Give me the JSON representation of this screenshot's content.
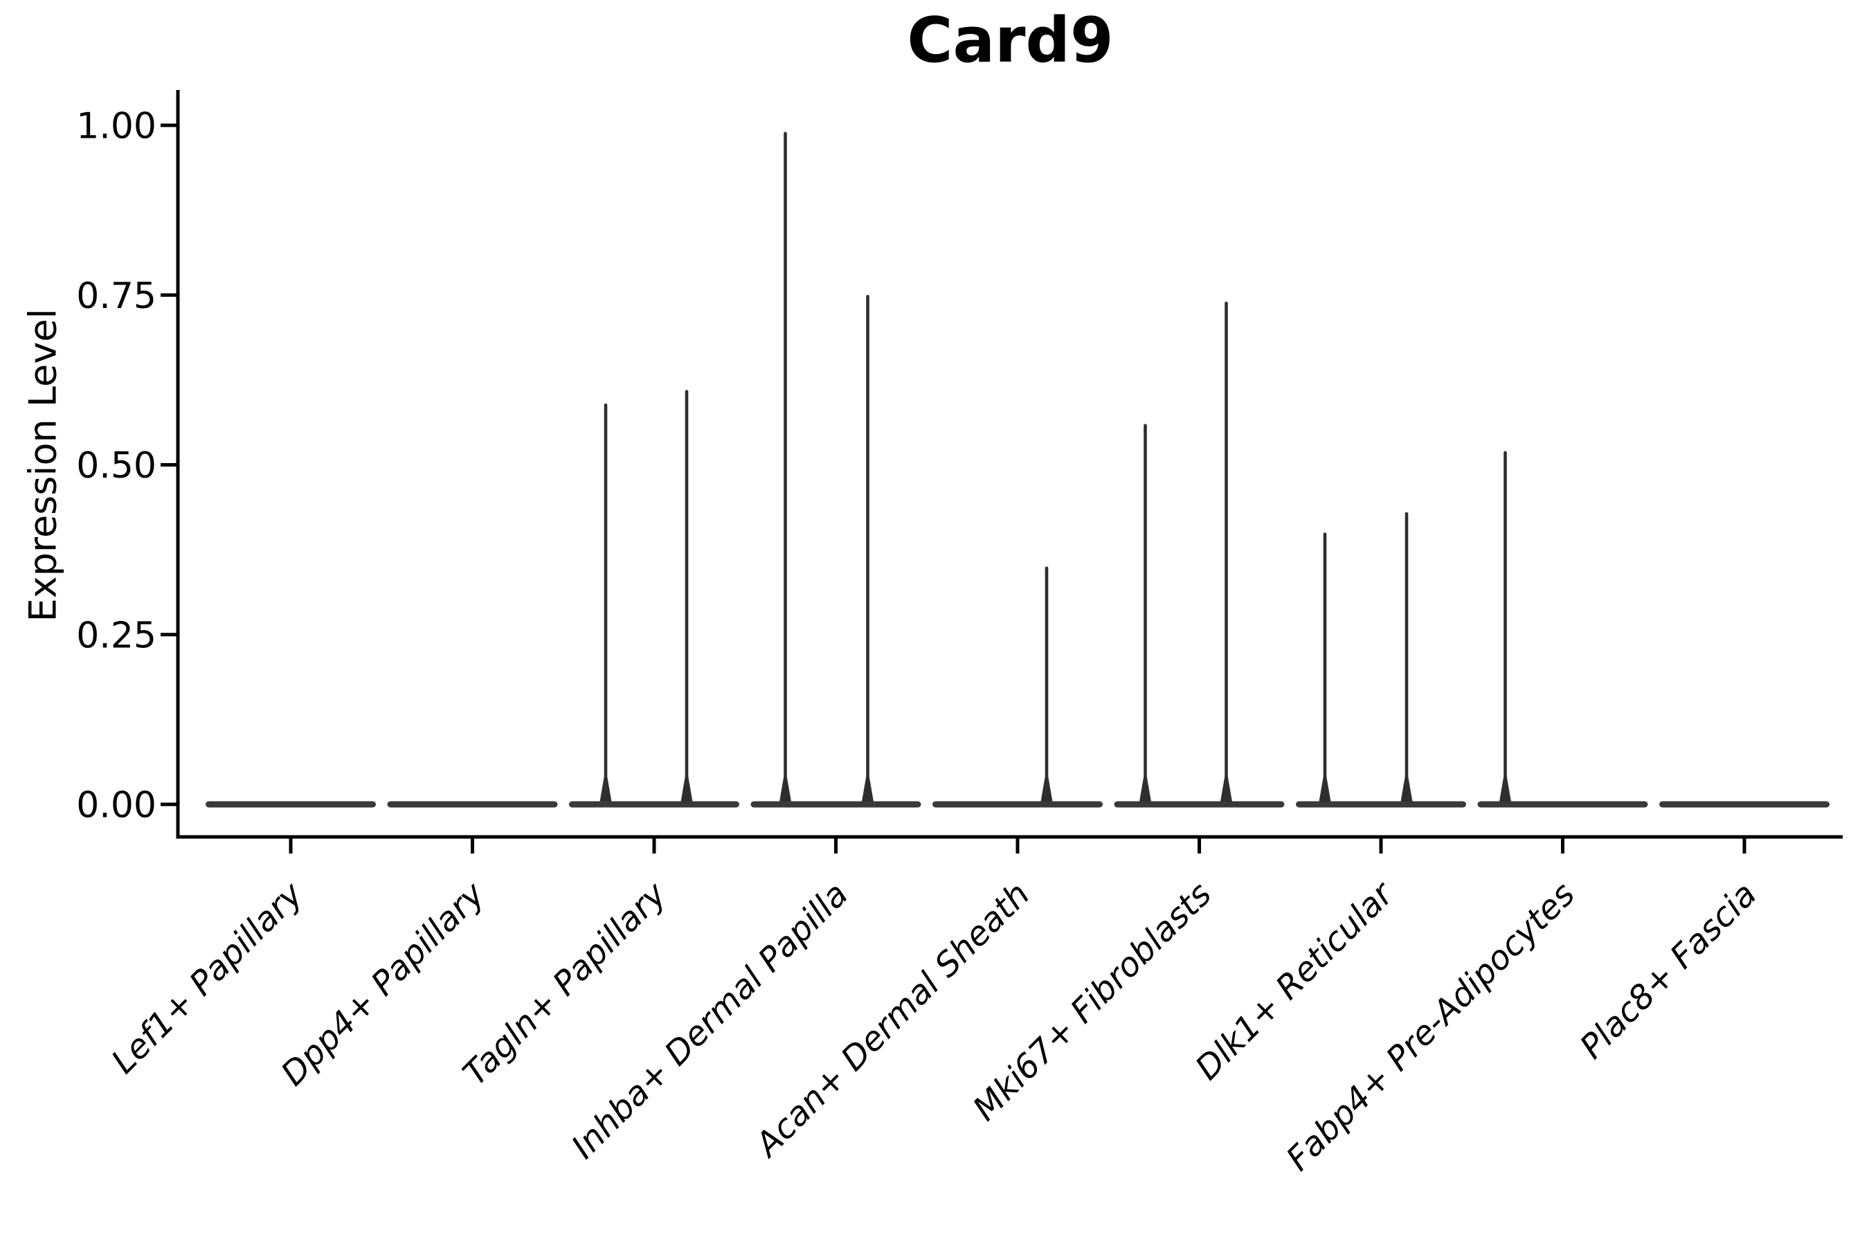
{
  "chart_data": {
    "type": "violin",
    "title": "Card9",
    "ylabel": "Expression Level",
    "xlabel": "",
    "ylim": [
      0,
      1.05
    ],
    "yticks": [
      1.0,
      0.75,
      0.5,
      0.25,
      0.0
    ],
    "grid": false,
    "legend_position": "none",
    "xtick_rotation_deg": 45,
    "categories": [
      "Lef1+ Papillary",
      "Dpp4+ Papillary",
      "Tagln+ Papillary",
      "Inhba+ Dermal Papilla",
      "Acan+ Dermal Sheath",
      "Mki67+ Fibroblasts",
      "Dlk1+ Reticular",
      "Fabp4+ Pre-Adipocytes",
      "Plac8+ Fascia"
    ],
    "violins": [
      {
        "category": "Lef1+ Papillary",
        "baseline_value": 0.0,
        "spikes": []
      },
      {
        "category": "Dpp4+ Papillary",
        "baseline_value": 0.0,
        "spikes": []
      },
      {
        "category": "Tagln+ Papillary",
        "baseline_value": 0.0,
        "spikes": [
          {
            "offset": -70,
            "value": 0.59
          },
          {
            "offset": 47,
            "value": 0.61
          }
        ]
      },
      {
        "category": "Inhba+ Dermal Papilla",
        "baseline_value": 0.0,
        "spikes": [
          {
            "offset": -73,
            "value": 0.99
          },
          {
            "offset": 46,
            "value": 0.75
          }
        ]
      },
      {
        "category": "Acan+ Dermal Sheath",
        "baseline_value": 0.0,
        "spikes": [
          {
            "offset": 42,
            "value": 0.35
          }
        ]
      },
      {
        "category": "Mki67+ Fibroblasts",
        "baseline_value": 0.0,
        "spikes": [
          {
            "offset": -78,
            "value": 0.56
          },
          {
            "offset": 39,
            "value": 0.74
          }
        ]
      },
      {
        "category": "Dlk1+ Reticular",
        "baseline_value": 0.0,
        "spikes": [
          {
            "offset": -81,
            "value": 0.4
          },
          {
            "offset": 37,
            "value": 0.43
          }
        ]
      },
      {
        "category": "Fabp4+ Pre-Adipocytes",
        "baseline_value": 0.0,
        "spikes": [
          {
            "offset": -83,
            "value": 0.52
          }
        ]
      },
      {
        "category": "Plac8+ Fascia",
        "baseline_value": 0.0,
        "spikes": []
      }
    ],
    "colors": {
      "violin_body": "#3a3a3a",
      "violin_spike": "#2e2e2e",
      "axis": "#000000",
      "text": "#000000",
      "background": "#ffffff"
    }
  }
}
